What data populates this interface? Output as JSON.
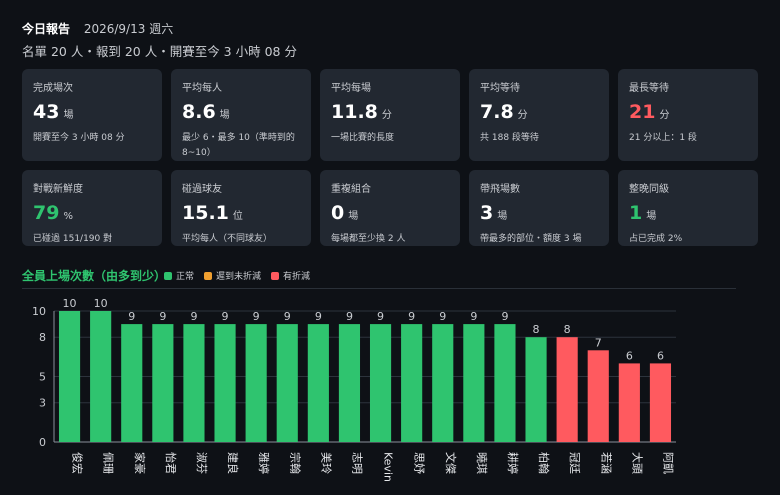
{
  "header": {
    "title": "今日報告",
    "date": "2026/9/13 週六"
  },
  "summary": "名單 20 人・報到 20 人・開賽至今 3 小時 08 分",
  "cards": [
    {
      "label": "完成場次",
      "value": "43",
      "unit": "場",
      "note": "開賽至今 3 小時 08 分",
      "color": "#ffffff"
    },
    {
      "label": "平均每人",
      "value": "8.6",
      "unit": "場",
      "note": "最少 6・最多 10（準時到的 8~10）",
      "color": "#ffffff"
    },
    {
      "label": "平均每場",
      "value": "11.8",
      "unit": "分",
      "note": "一場比賽的長度",
      "color": "#ffffff"
    },
    {
      "label": "平均等待",
      "value": "7.8",
      "unit": "分",
      "note": "共 188 段等待",
      "color": "#ffffff"
    },
    {
      "label": "最長等待",
      "value": "21",
      "unit": "分",
      "note": "21 分以上：1 段",
      "color": "#ff5a5f"
    },
    {
      "label": "對戰新鮮度",
      "value": "79",
      "unit": "%",
      "note": "已碰過 151/190 對",
      "color": "#2fc46f"
    },
    {
      "label": "碰過球友",
      "value": "15.1",
      "unit": "位",
      "note": "平均每人（不同球友）",
      "color": "#ffffff"
    },
    {
      "label": "重複組合",
      "value": "0",
      "unit": "場",
      "note": "每場都至少換 2 人",
      "color": "#ffffff"
    },
    {
      "label": "帶飛場數",
      "value": "3",
      "unit": "場",
      "note": "帶最多的部位・額度 3 場",
      "color": "#ffffff"
    },
    {
      "label": "整晚同級",
      "value": "1",
      "unit": "場",
      "note": "占已完成 2%",
      "color": "#2fc46f"
    }
  ],
  "colors": {
    "normal": "#2fc46f",
    "late": "#f0a030",
    "discount": "#ff5a5f"
  },
  "chart_data": {
    "type": "bar",
    "title": "全員上場次數（由多到少）",
    "legend": [
      {
        "key": "normal",
        "name": "正常"
      },
      {
        "key": "late",
        "name": "遲到未折減"
      },
      {
        "key": "discount",
        "name": "有折減"
      }
    ],
    "categories": [
      "俊宏",
      "佩珊",
      "家豪",
      "怡君",
      "淑芬",
      "建良",
      "雅婷",
      "宗翰",
      "美玲",
      "志明",
      "Kevin",
      "思妤",
      "文傑",
      "曉琪",
      "耕婷",
      "柏翰",
      "冠廷",
      "若涵",
      "大頭",
      "阿凱"
    ],
    "values": [
      10,
      10,
      9,
      9,
      9,
      9,
      9,
      9,
      9,
      9,
      9,
      9,
      9,
      9,
      9,
      8,
      8,
      7,
      6,
      6
    ],
    "status": [
      "normal",
      "normal",
      "normal",
      "normal",
      "normal",
      "normal",
      "normal",
      "normal",
      "normal",
      "normal",
      "normal",
      "normal",
      "normal",
      "normal",
      "normal",
      "normal",
      "discount",
      "discount",
      "discount",
      "discount"
    ],
    "yticks": [
      "0",
      "3",
      "5",
      "8",
      "10"
    ],
    "ylim": [
      0,
      10
    ],
    "grid": true
  }
}
